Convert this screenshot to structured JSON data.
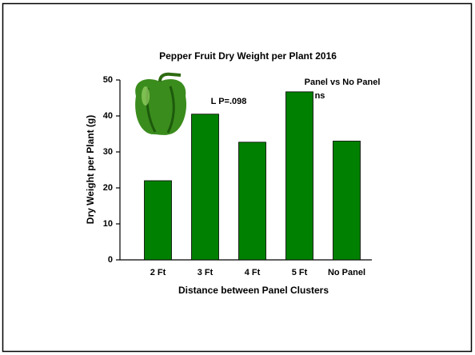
{
  "chart_data": {
    "type": "bar",
    "title": "Pepper Fruit Dry Weight per Plant 2016",
    "x_label": "Distance between Panel Clusters",
    "y_label": "Dry Weight per Plant (g)",
    "categories": [
      "2 Ft",
      "3 Ft",
      "4 Ft",
      "5 Ft",
      "No Panel"
    ],
    "values": [
      22,
      40.5,
      32.7,
      46.7,
      33
    ],
    "color": "#008000",
    "ylim": [
      0,
      50
    ],
    "yticks": [
      0,
      10,
      20,
      30,
      40,
      50
    ],
    "annotations": [
      "L  P=.098",
      "Panel vs No Panel",
      "ns"
    ]
  }
}
